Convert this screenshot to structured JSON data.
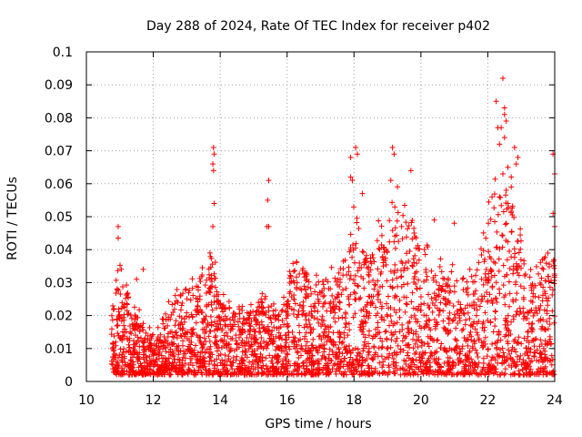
{
  "chart_data": {
    "type": "scatter",
    "title": "Day 288 of 2024, Rate Of TEC Index for receiver p402",
    "xlabel": "GPS time / hours",
    "ylabel": "ROTI / TECUs",
    "xlim": [
      10,
      24
    ],
    "ylim": [
      0,
      0.1
    ],
    "x_ticks": [
      "10",
      "12",
      "14",
      "16",
      "18",
      "20",
      "22",
      "24"
    ],
    "y_ticks": [
      "0",
      "0.01",
      "0.02",
      "0.03",
      "0.04",
      "0.05",
      "0.06",
      "0.07",
      "0.08",
      "0.09",
      "0.1"
    ],
    "grid": true,
    "marker": "+",
    "series": [
      {
        "name": "ROTI",
        "color": "#ff0000",
        "x_start": 10.75,
        "x_end": 24.0,
        "envelope": [
          {
            "x": 10.75,
            "top": 0.025
          },
          {
            "x": 11.0,
            "top": 0.034
          },
          {
            "x": 11.5,
            "top": 0.02
          },
          {
            "x": 12.0,
            "top": 0.014
          },
          {
            "x": 12.5,
            "top": 0.025
          },
          {
            "x": 13.0,
            "top": 0.027
          },
          {
            "x": 13.5,
            "top": 0.033
          },
          {
            "x": 13.75,
            "top": 0.041
          },
          {
            "x": 14.0,
            "top": 0.025
          },
          {
            "x": 14.5,
            "top": 0.02
          },
          {
            "x": 15.0,
            "top": 0.022
          },
          {
            "x": 15.3,
            "top": 0.027
          },
          {
            "x": 15.7,
            "top": 0.02
          },
          {
            "x": 16.2,
            "top": 0.036
          },
          {
            "x": 16.8,
            "top": 0.03
          },
          {
            "x": 17.5,
            "top": 0.032
          },
          {
            "x": 18.0,
            "top": 0.048
          },
          {
            "x": 18.5,
            "top": 0.04
          },
          {
            "x": 19.0,
            "top": 0.05
          },
          {
            "x": 19.5,
            "top": 0.055
          },
          {
            "x": 20.0,
            "top": 0.04
          },
          {
            "x": 20.5,
            "top": 0.033
          },
          {
            "x": 21.0,
            "top": 0.036
          },
          {
            "x": 21.5,
            "top": 0.03
          },
          {
            "x": 22.0,
            "top": 0.05
          },
          {
            "x": 22.4,
            "top": 0.066
          },
          {
            "x": 22.8,
            "top": 0.055
          },
          {
            "x": 23.2,
            "top": 0.03
          },
          {
            "x": 23.6,
            "top": 0.035
          },
          {
            "x": 24.0,
            "top": 0.04
          }
        ],
        "outliers": [
          {
            "x": 10.95,
            "y": 0.047
          },
          {
            "x": 10.95,
            "y": 0.0435
          },
          {
            "x": 11.5,
            "y": 0.031
          },
          {
            "x": 11.7,
            "y": 0.034
          },
          {
            "x": 13.8,
            "y": 0.071
          },
          {
            "x": 13.82,
            "y": 0.069
          },
          {
            "x": 13.78,
            "y": 0.066
          },
          {
            "x": 13.8,
            "y": 0.064
          },
          {
            "x": 13.82,
            "y": 0.054
          },
          {
            "x": 13.78,
            "y": 0.047
          },
          {
            "x": 15.45,
            "y": 0.061
          },
          {
            "x": 15.42,
            "y": 0.055
          },
          {
            "x": 15.4,
            "y": 0.047
          },
          {
            "x": 15.45,
            "y": 0.047
          },
          {
            "x": 17.9,
            "y": 0.068
          },
          {
            "x": 18.05,
            "y": 0.071
          },
          {
            "x": 18.1,
            "y": 0.069
          },
          {
            "x": 17.9,
            "y": 0.062
          },
          {
            "x": 17.95,
            "y": 0.061
          },
          {
            "x": 18.25,
            "y": 0.057
          },
          {
            "x": 19.15,
            "y": 0.071
          },
          {
            "x": 19.2,
            "y": 0.069
          },
          {
            "x": 19.7,
            "y": 0.064
          },
          {
            "x": 19.1,
            "y": 0.061
          },
          {
            "x": 20.4,
            "y": 0.049
          },
          {
            "x": 21.0,
            "y": 0.048
          },
          {
            "x": 22.45,
            "y": 0.092
          },
          {
            "x": 22.25,
            "y": 0.085
          },
          {
            "x": 22.5,
            "y": 0.083
          },
          {
            "x": 22.5,
            "y": 0.081
          },
          {
            "x": 22.55,
            "y": 0.079
          },
          {
            "x": 22.3,
            "y": 0.077
          },
          {
            "x": 22.4,
            "y": 0.077
          },
          {
            "x": 22.5,
            "y": 0.074
          },
          {
            "x": 22.35,
            "y": 0.072
          },
          {
            "x": 22.8,
            "y": 0.071
          },
          {
            "x": 22.9,
            "y": 0.068
          },
          {
            "x": 22.85,
            "y": 0.066
          },
          {
            "x": 22.6,
            "y": 0.065
          },
          {
            "x": 22.45,
            "y": 0.063
          },
          {
            "x": 22.7,
            "y": 0.059
          },
          {
            "x": 22.55,
            "y": 0.058
          },
          {
            "x": 22.35,
            "y": 0.056
          },
          {
            "x": 22.6,
            "y": 0.054
          },
          {
            "x": 23.95,
            "y": 0.069
          },
          {
            "x": 24.0,
            "y": 0.063
          },
          {
            "x": 23.95,
            "y": 0.051
          },
          {
            "x": 24.0,
            "y": 0.047
          }
        ],
        "min_y": 0.002
      }
    ]
  }
}
